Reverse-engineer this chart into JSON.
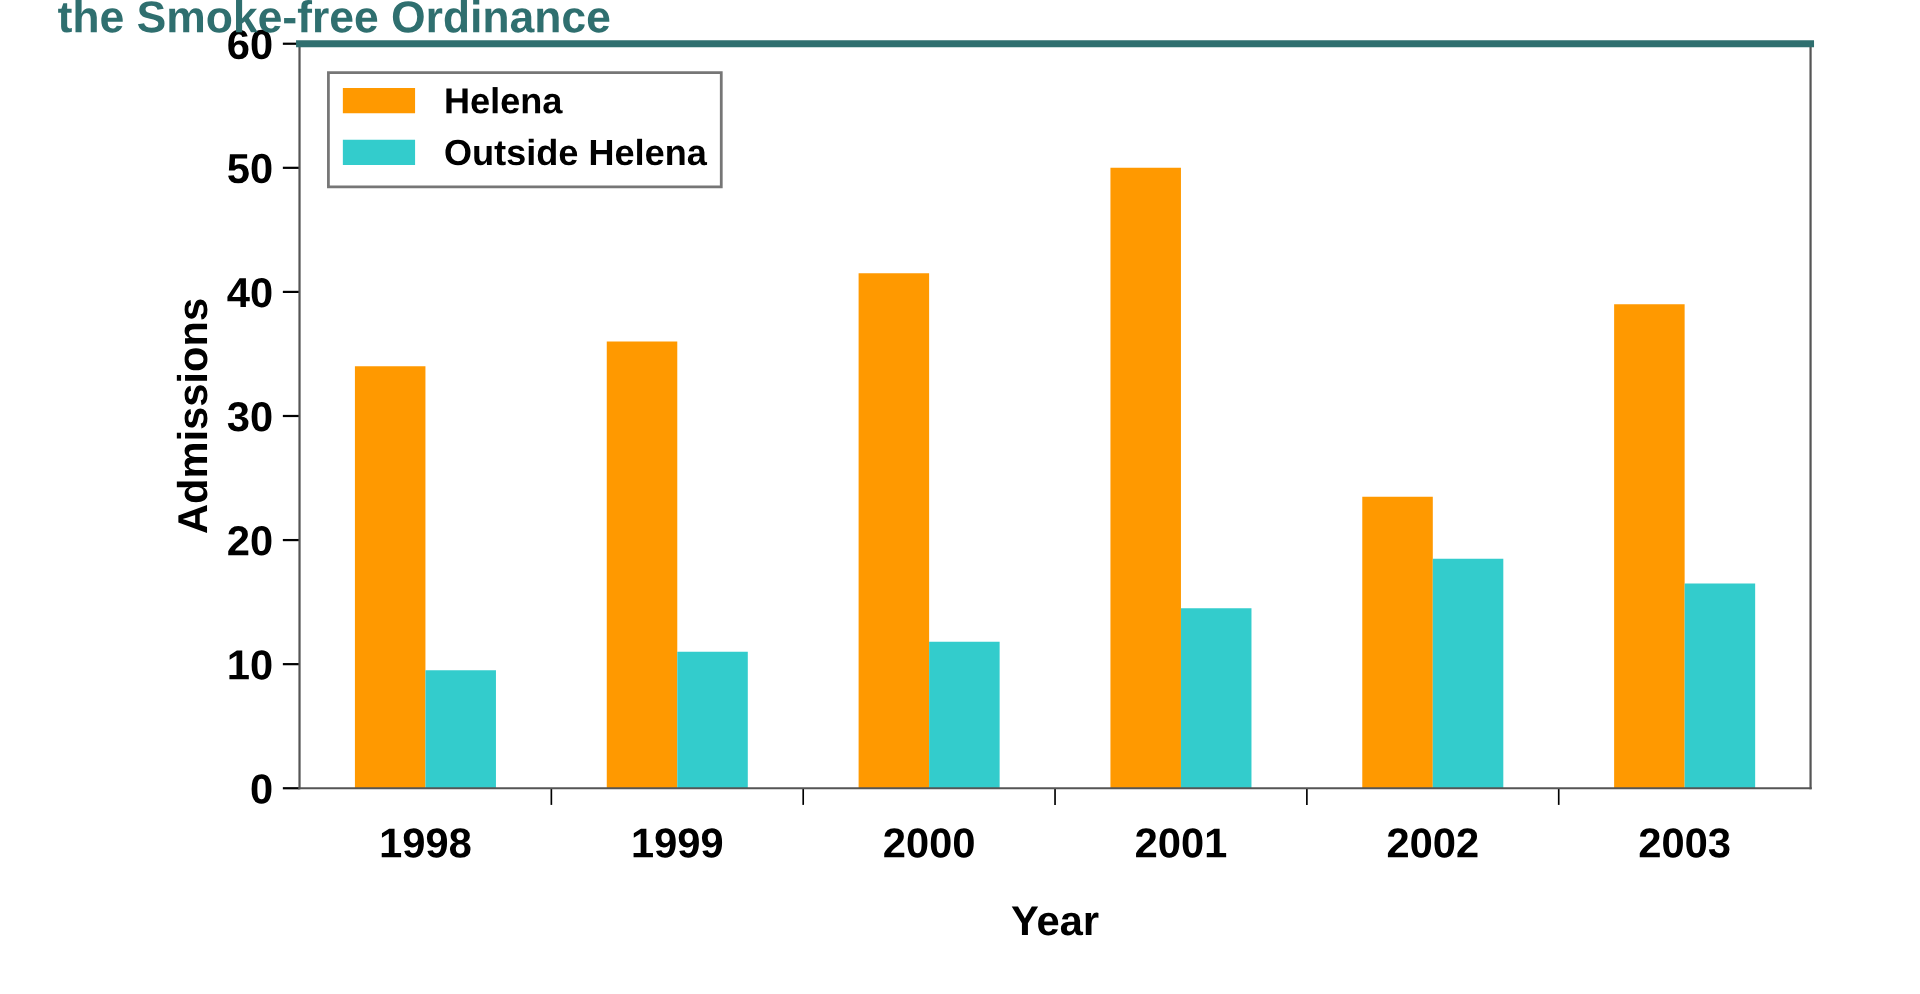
{
  "chart_data": {
    "type": "bar",
    "title": "the Smoke-free Ordinance",
    "xlabel": "Year",
    "ylabel": "Admissions",
    "categories": [
      "1998",
      "1999",
      "2000",
      "2001",
      "2002",
      "2003"
    ],
    "series": [
      {
        "name": "Helena",
        "color": "#ff9900",
        "values": [
          34,
          36,
          41.5,
          50,
          23.5,
          39
        ]
      },
      {
        "name": "Outside Helena",
        "color": "#33cccc",
        "values": [
          9.5,
          11,
          11.8,
          14.5,
          18.5,
          16.5
        ]
      }
    ],
    "ylim": [
      0,
      60
    ],
    "yticks": [
      0,
      10,
      20,
      30,
      40,
      50,
      60
    ],
    "grid": false,
    "legend": "top left"
  }
}
